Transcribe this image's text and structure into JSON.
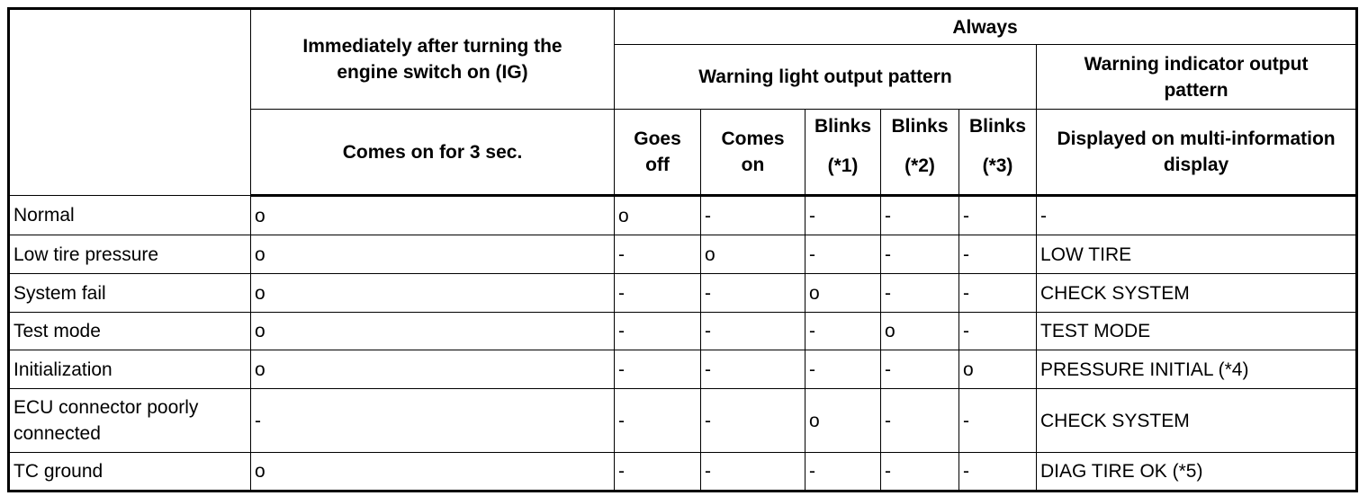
{
  "header": {
    "ig_title": "Immediately after turning the engine switch on (IG)",
    "always": "Always",
    "warning_light": "Warning light output pattern",
    "warning_indicator": "Warning indicator output pattern",
    "ig_pattern": "Comes on for 3 sec.",
    "goes_off": "Goes off",
    "comes_on": "Comes on",
    "blinks1": [
      "Blinks",
      "(*1)"
    ],
    "blinks2": [
      "Blinks",
      "(*2)"
    ],
    "blinks3": [
      "Blinks",
      "(*3)"
    ],
    "displayed_on": "Displayed on multi-information display"
  },
  "rows": [
    {
      "condition": "Normal",
      "ig": "o",
      "goes_off": "o",
      "comes_on": "-",
      "b1": "-",
      "b2": "-",
      "b3": "-",
      "display": "-"
    },
    {
      "condition": "Low tire pressure",
      "ig": "o",
      "goes_off": "-",
      "comes_on": "o",
      "b1": "-",
      "b2": "-",
      "b3": "-",
      "display": "LOW TIRE"
    },
    {
      "condition": "System fail",
      "ig": "o",
      "goes_off": "-",
      "comes_on": "-",
      "b1": "o",
      "b2": "-",
      "b3": "-",
      "display": "CHECK SYSTEM"
    },
    {
      "condition": "Test mode",
      "ig": "o",
      "goes_off": "-",
      "comes_on": "-",
      "b1": "-",
      "b2": "o",
      "b3": "-",
      "display": "TEST MODE"
    },
    {
      "condition": "Initialization",
      "ig": "o",
      "goes_off": "-",
      "comes_on": "-",
      "b1": "-",
      "b2": "-",
      "b3": "o",
      "display": "PRESSURE INITIAL (*4)"
    },
    {
      "condition": "ECU connector poorly connected",
      "ig": "-",
      "goes_off": "-",
      "comes_on": "-",
      "b1": "o",
      "b2": "-",
      "b3": "-",
      "display": "CHECK SYSTEM"
    },
    {
      "condition": "TC ground",
      "ig": "o",
      "goes_off": "-",
      "comes_on": "-",
      "b1": "-",
      "b2": "-",
      "b3": "-",
      "display": "DIAG TIRE OK (*5)"
    }
  ]
}
